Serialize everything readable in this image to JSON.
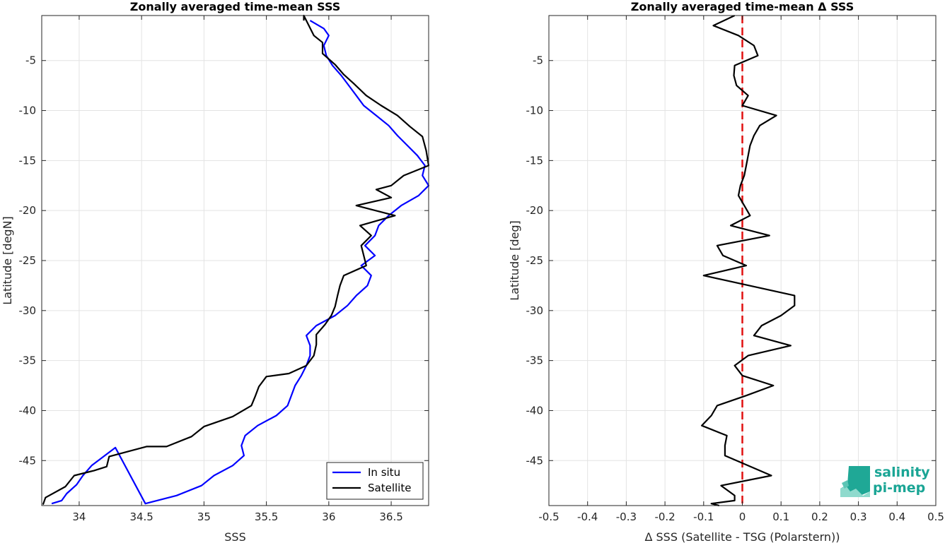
{
  "chart_data": [
    {
      "type": "line",
      "title": "Zonally averaged time-mean SSS",
      "xlabel": "SSS",
      "ylabel": "Latitude [degN]",
      "xlim": [
        33.7,
        36.8
      ],
      "ylim": [
        -49.5,
        -0.5
      ],
      "xticks": [
        "34",
        "34.5",
        "35",
        "35.5",
        "36",
        "36.5"
      ],
      "yticks": [
        "-5",
        "-10",
        "-15",
        "-20",
        "-25",
        "-30",
        "-35",
        "-40",
        "-45"
      ],
      "grid": true,
      "legend_location": "bottom-right",
      "series": [
        {
          "name": "In situ",
          "color": "#0000ff",
          "x": [
            35.85,
            35.96,
            36.0,
            35.96,
            35.98,
            36.03,
            36.1,
            36.16,
            36.22,
            36.28,
            36.38,
            36.48,
            36.55,
            36.63,
            36.71,
            36.77,
            36.75,
            36.8,
            36.72,
            36.58,
            36.48,
            36.4,
            36.37,
            36.29,
            36.37,
            36.26,
            36.34,
            36.31,
            36.22,
            36.15,
            36.05,
            35.9,
            35.82,
            35.85,
            35.85,
            35.82,
            35.78,
            35.73,
            35.7,
            35.67,
            35.58,
            35.43,
            35.33,
            35.3,
            35.32,
            35.23,
            35.08,
            34.98,
            34.78,
            34.53,
            34.29,
            34.1,
            34.03,
            33.98,
            33.9,
            33.86,
            33.78
          ],
          "y": [
            -1,
            -1.8,
            -2.5,
            -3.5,
            -4.5,
            -5.5,
            -6.5,
            -7.5,
            -8.5,
            -9.5,
            -10.5,
            -11.5,
            -12.5,
            -13.5,
            -14.5,
            -15.5,
            -16.5,
            -17.5,
            -18.5,
            -19.5,
            -20.5,
            -21.5,
            -22.5,
            -23.5,
            -24.5,
            -25.5,
            -26.5,
            -27.5,
            -28.5,
            -29.5,
            -30.5,
            -31.5,
            -32.5,
            -33.5,
            -34.5,
            -35.5,
            -36.5,
            -37.5,
            -38.5,
            -39.5,
            -40.5,
            -41.5,
            -42.5,
            -43.5,
            -44.5,
            -45.5,
            -46.5,
            -47.5,
            -48.5,
            -49.3,
            -43.7,
            -45.5,
            -46.5,
            -47.4,
            -48.3,
            -49.0,
            -49.3
          ]
        },
        {
          "name": "Satellite",
          "color": "#000000",
          "x": [
            35.8,
            35.8,
            35.88,
            35.95,
            35.95,
            36.05,
            36.12,
            36.2,
            36.3,
            36.42,
            36.55,
            36.65,
            36.75,
            36.78,
            36.8,
            36.6,
            36.5,
            36.38,
            36.5,
            36.22,
            36.53,
            36.25,
            36.34,
            36.26,
            36.3,
            36.12,
            36.09,
            36.07,
            36.05,
            36.02,
            35.97,
            35.9,
            35.9,
            35.88,
            35.82,
            35.68,
            35.5,
            35.44,
            35.41,
            35.38,
            35.23,
            35.0,
            34.9,
            34.7,
            34.54,
            34.24,
            34.22,
            34.12,
            33.96,
            33.89,
            33.73,
            33.71
          ],
          "y": [
            -1,
            -0.5,
            -2.5,
            -3.2,
            -4.3,
            -5.4,
            -6.4,
            -7.3,
            -8.5,
            -9.5,
            -10.5,
            -11.6,
            -12.6,
            -14.0,
            -15.5,
            -16.5,
            -17.5,
            -17.9,
            -18.7,
            -19.5,
            -20.5,
            -21.5,
            -22.5,
            -23.5,
            -25.5,
            -26.5,
            -27.5,
            -28.5,
            -29.6,
            -30.5,
            -31.4,
            -32.4,
            -33.4,
            -34.5,
            -35.5,
            -36.3,
            -36.6,
            -37.6,
            -38.6,
            -39.5,
            -40.6,
            -41.6,
            -42.6,
            -43.6,
            -43.6,
            -44.6,
            -45.6,
            -46.0,
            -46.5,
            -47.6,
            -48.7,
            -49.4
          ]
        }
      ]
    },
    {
      "type": "line",
      "title": "Zonally averaged time-mean Δ SSS",
      "xlabel": "Δ SSS (Satellite - TSG (Polarstern))",
      "ylabel": "Latitude [deg]",
      "xlim": [
        -0.5,
        0.5
      ],
      "ylim": [
        -49.5,
        -0.5
      ],
      "xticks": [
        "-0.5",
        "-0.4",
        "-0.3",
        "-0.2",
        "-0.1",
        "0",
        "0.1",
        "0.2",
        "0.3",
        "0.4",
        "0.5"
      ],
      "yticks": [
        "-5",
        "-10",
        "-15",
        "-20",
        "-25",
        "-30",
        "-35",
        "-40",
        "-45"
      ],
      "grid": true,
      "reference_line": {
        "x": 0,
        "color": "#e01010",
        "style": "dashed"
      },
      "series": [
        {
          "color": "#000000",
          "x": [
            -0.02,
            -0.075,
            -0.01,
            0.03,
            0.04,
            -0.02,
            -0.022,
            -0.015,
            0.015,
            0.0,
            0.088,
            0.045,
            0.03,
            0.02,
            0.015,
            0.01,
            0.005,
            -0.005,
            -0.01,
            0.005,
            0.02,
            -0.03,
            0.07,
            -0.065,
            -0.05,
            0.01,
            -0.1,
            0.135,
            0.135,
            0.1,
            0.05,
            0.03,
            0.125,
            0.015,
            -0.02,
            0.0,
            0.08,
            0.01,
            -0.065,
            -0.08,
            -0.105,
            -0.04,
            -0.045,
            -0.045,
            0.075,
            -0.055,
            -0.02,
            -0.02,
            -0.08,
            -0.06
          ],
          "y": [
            -0.5,
            -1.5,
            -2.5,
            -3.5,
            -4.5,
            -5.5,
            -6.5,
            -7.5,
            -8.5,
            -9.5,
            -10.5,
            -11.5,
            -12.5,
            -13.5,
            -14.5,
            -15.5,
            -16.5,
            -17.5,
            -18.5,
            -19.5,
            -20.5,
            -21.5,
            -22.5,
            -23.5,
            -24.5,
            -25.5,
            -26.5,
            -28.5,
            -29.5,
            -30.5,
            -31.5,
            -32.5,
            -33.5,
            -34.5,
            -35.5,
            -36.5,
            -37.5,
            -38.5,
            -39.5,
            -40.5,
            -41.5,
            -42.5,
            -43.5,
            -44.5,
            -46.5,
            -47.5,
            -48.5,
            -49.0,
            -49.3,
            -49.5
          ]
        }
      ]
    }
  ],
  "legend": {
    "items": [
      "In situ",
      "Satellite"
    ]
  },
  "logo": {
    "line1": "salinity",
    "line2": "pi-mep"
  }
}
